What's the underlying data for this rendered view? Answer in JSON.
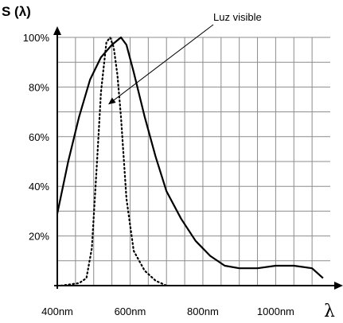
{
  "chart_data": {
    "type": "line",
    "ylabel": "S (λ)",
    "xlabel": "λ",
    "xlim": [
      400,
      1150
    ],
    "ylim": [
      0,
      100
    ],
    "x_ticks": [
      400,
      600,
      800,
      1000
    ],
    "x_tick_labels": [
      "400nm",
      "600nm",
      "800nm",
      "1000nm"
    ],
    "y_ticks": [
      20,
      40,
      60,
      80,
      100
    ],
    "y_tick_labels": [
      "20%",
      "40%",
      "60%",
      "80%",
      "100%"
    ],
    "grid": true,
    "annotation": {
      "text": "Luz visible",
      "target": [
        540,
        73
      ]
    },
    "series": [
      {
        "style": "solid",
        "x": [
          400,
          430,
          460,
          490,
          520,
          550,
          575,
          590,
          610,
          640,
          670,
          700,
          740,
          780,
          820,
          860,
          900,
          950,
          1000,
          1050,
          1100,
          1130
        ],
        "y": [
          29,
          50,
          68,
          83,
          92,
          97,
          100,
          97,
          86,
          68,
          52,
          38,
          27,
          18,
          12,
          8,
          7,
          7,
          8,
          8,
          7,
          3
        ]
      },
      {
        "style": "dotted",
        "x": [
          410,
          460,
          480,
          495,
          510,
          520,
          535,
          545,
          555,
          565,
          575,
          590,
          610,
          640,
          670,
          700
        ],
        "y": [
          0,
          1,
          3,
          15,
          52,
          78,
          98,
          100,
          96,
          85,
          68,
          35,
          14,
          6,
          2,
          0
        ]
      }
    ]
  }
}
